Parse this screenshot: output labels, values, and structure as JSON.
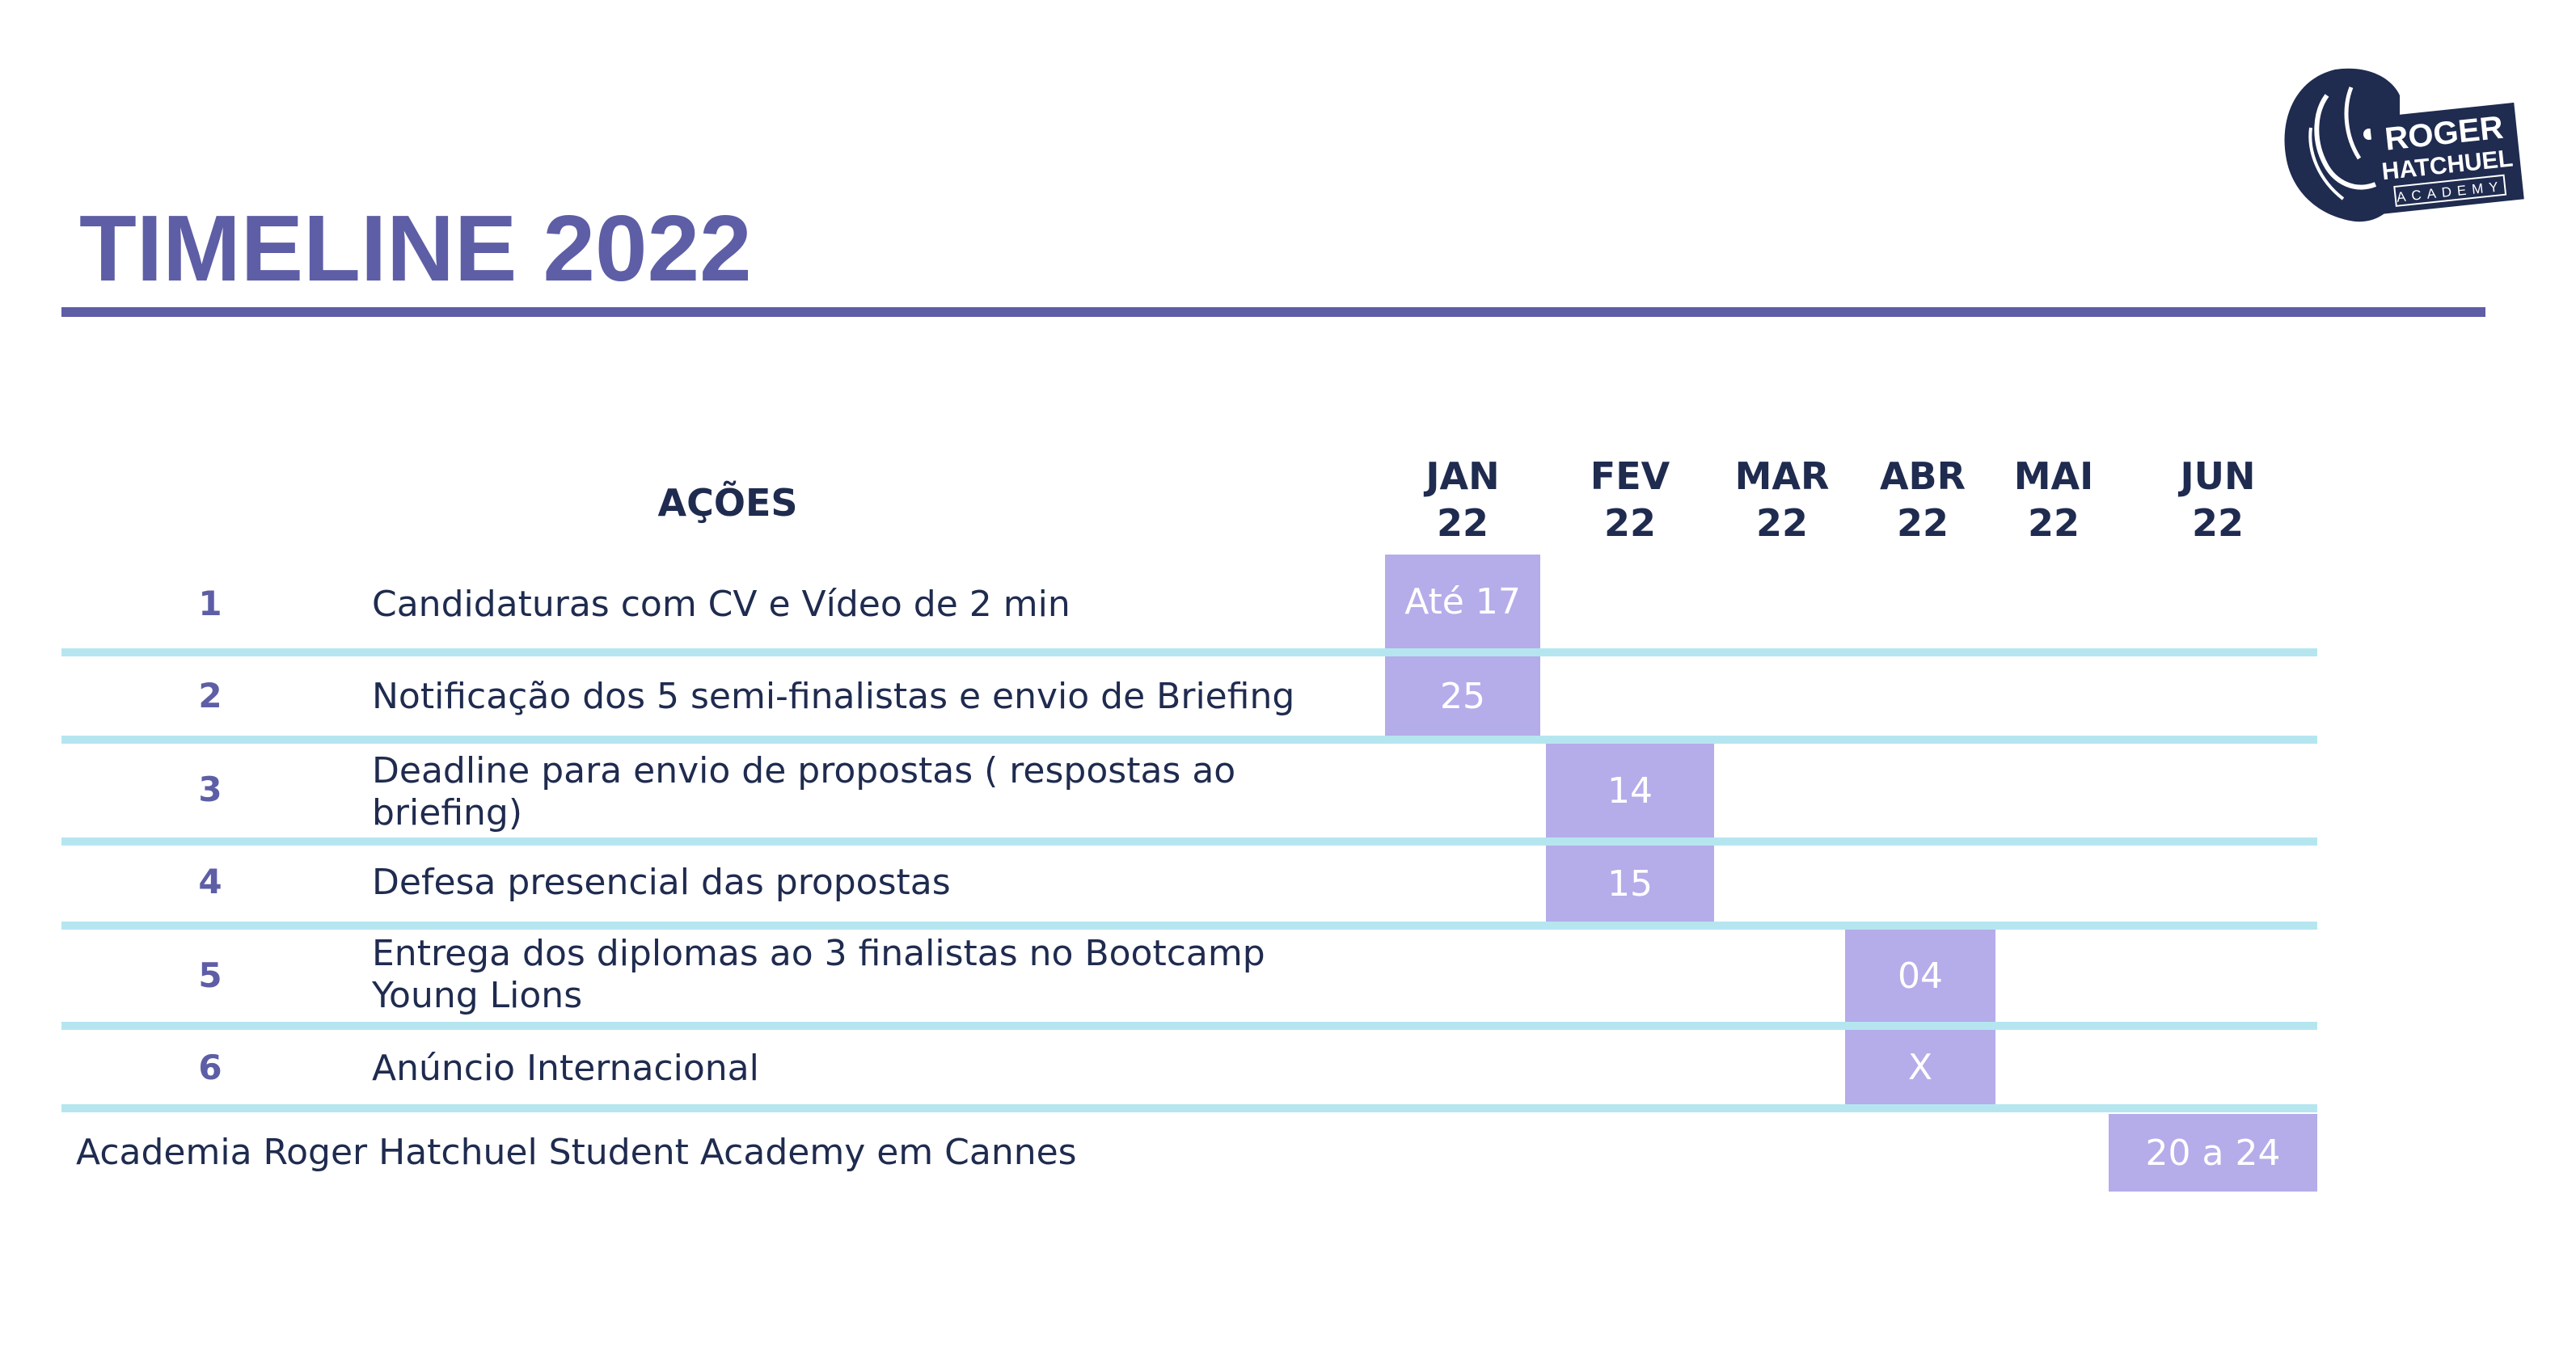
{
  "title": "TIMELINE 2022",
  "logo": {
    "icon": "lion-head-logo",
    "line1": "ROGER",
    "line2": "HATCHUEL",
    "line3": "ACADEMY"
  },
  "table": {
    "actions_header": "AÇÕES",
    "months": [
      {
        "name": "JAN",
        "year": "22"
      },
      {
        "name": "FEV",
        "year": "22"
      },
      {
        "name": "MAR",
        "year": "22"
      },
      {
        "name": "ABR",
        "year": "22"
      },
      {
        "name": "MAI",
        "year": "22"
      },
      {
        "name": "JUN",
        "year": "22"
      }
    ],
    "rows": [
      {
        "number": "1",
        "label": "Candidaturas com CV e Vídeo de 2 min",
        "month": "JAN",
        "value": "Até 17"
      },
      {
        "number": "2",
        "label": "Notificação dos 5 semi-finalistas e envio de Briefing",
        "month": "JAN",
        "value": "25"
      },
      {
        "number": "3",
        "label": "Deadline para envio de propostas ( respostas ao briefing)",
        "month": "FEV",
        "value": "14"
      },
      {
        "number": "4",
        "label": "Defesa presencial das propostas",
        "month": "FEV",
        "value": "15"
      },
      {
        "number": "5",
        "label": "Entrega dos diplomas ao 3 finalistas no Bootcamp Young Lions",
        "month": "ABR",
        "value": "04"
      },
      {
        "number": "6",
        "label": "Anúncio Internacional",
        "month": "ABR",
        "value": "X"
      }
    ],
    "footer": {
      "label": "Academia Roger Hatchuel Student Academy em Cannes",
      "month": "JUN",
      "value": "20 a 24"
    }
  }
}
